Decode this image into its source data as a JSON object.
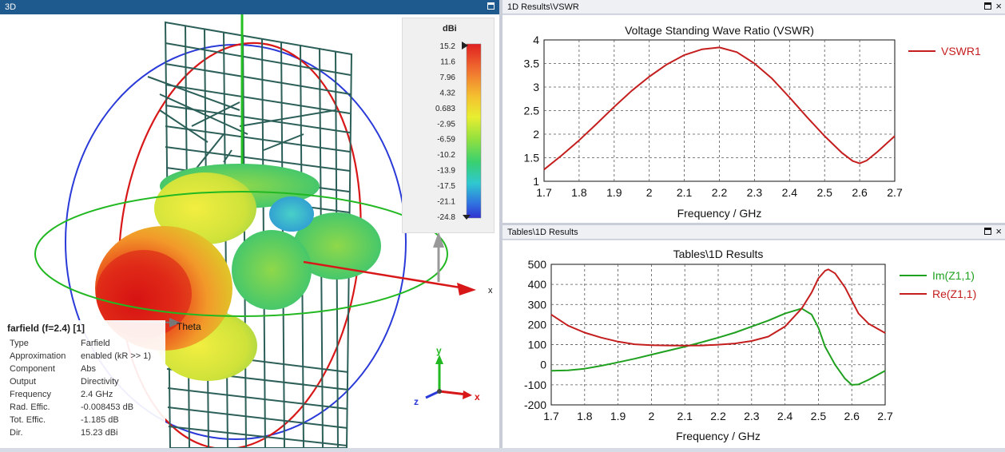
{
  "panels": {
    "left_title": "3D",
    "vswr_title": "1D Results\\VSWR",
    "tables_title": "Tables\\1D Results"
  },
  "colorbar": {
    "unit": "dBi",
    "ticks": [
      "15.2",
      "11.6",
      "7.96",
      "4.32",
      "0.683",
      "-2.95",
      "-6.59",
      "-10.2",
      "-13.9",
      "-17.5",
      "-21.1",
      "-24.8"
    ]
  },
  "axes3d": {
    "x": "x",
    "y": "y",
    "z": "z",
    "theta": "Theta",
    "x_small": "x"
  },
  "farfield": {
    "title": "farfield (f=2.4) [1]",
    "rows": [
      {
        "k": "Type",
        "v": "Farfield"
      },
      {
        "k": "Approximation",
        "v": "enabled (kR >> 1)"
      },
      {
        "k": "Component",
        "v": "Abs"
      },
      {
        "k": "Output",
        "v": "Directivity"
      },
      {
        "k": "Frequency",
        "v": "2.4 GHz"
      },
      {
        "k": "Rad. Effic.",
        "v": "-0.008453 dB"
      },
      {
        "k": "Tot. Effic.",
        "v": "-1.185 dB"
      },
      {
        "k": "Dir.",
        "v": "15.23 dBi"
      }
    ]
  },
  "chart_data": [
    {
      "type": "line",
      "title": "Voltage Standing Wave Ratio (VSWR)",
      "xlabel": "Frequency / GHz",
      "ylabel": "",
      "xlim": [
        1.7,
        2.7
      ],
      "ylim": [
        1,
        4
      ],
      "xticks": [
        "1.7",
        "1.8",
        "1.9",
        "2",
        "2.1",
        "2.2",
        "2.3",
        "2.4",
        "2.5",
        "2.6",
        "2.7"
      ],
      "yticks": [
        "1",
        "1.5",
        "2",
        "2.5",
        "3",
        "3.5",
        "4"
      ],
      "grid": true,
      "legend": "right",
      "series": [
        {
          "name": "VSWR1",
          "color": "#c41e1e",
          "x": [
            1.7,
            1.75,
            1.8,
            1.85,
            1.9,
            1.95,
            2.0,
            2.05,
            2.1,
            2.15,
            2.2,
            2.25,
            2.3,
            2.35,
            2.4,
            2.45,
            2.5,
            2.55,
            2.58,
            2.6,
            2.62,
            2.65,
            2.7
          ],
          "y": [
            1.25,
            1.55,
            1.87,
            2.22,
            2.58,
            2.92,
            3.22,
            3.48,
            3.68,
            3.8,
            3.84,
            3.74,
            3.5,
            3.18,
            2.78,
            2.36,
            1.96,
            1.6,
            1.43,
            1.38,
            1.44,
            1.62,
            1.96
          ]
        }
      ]
    },
    {
      "type": "line",
      "title": "Tables\\1D Results",
      "xlabel": "Frequency / GHz",
      "ylabel": "",
      "xlim": [
        1.7,
        2.7
      ],
      "ylim": [
        -200,
        500
      ],
      "xticks": [
        "1.7",
        "1.8",
        "1.9",
        "2",
        "2.1",
        "2.2",
        "2.3",
        "2.4",
        "2.5",
        "2.6",
        "2.7"
      ],
      "yticks": [
        "-200",
        "-100",
        "0",
        "100",
        "200",
        "300",
        "400",
        "500"
      ],
      "grid": true,
      "legend": "right",
      "series": [
        {
          "name": "Im(Z1,1)",
          "color": "#1fa01f",
          "x": [
            1.7,
            1.75,
            1.8,
            1.85,
            1.9,
            1.95,
            2.0,
            2.05,
            2.1,
            2.15,
            2.2,
            2.25,
            2.3,
            2.35,
            2.4,
            2.45,
            2.48,
            2.5,
            2.52,
            2.55,
            2.58,
            2.6,
            2.62,
            2.65,
            2.7
          ],
          "y": [
            -30,
            -28,
            -20,
            -5,
            12,
            30,
            50,
            70,
            90,
            112,
            135,
            160,
            190,
            220,
            255,
            280,
            250,
            185,
            90,
            0,
            -70,
            -100,
            -98,
            -75,
            -30
          ]
        },
        {
          "name": "Re(Z1,1)",
          "color": "#c41e1e",
          "x": [
            1.7,
            1.75,
            1.8,
            1.85,
            1.9,
            1.95,
            2.0,
            2.05,
            2.1,
            2.15,
            2.2,
            2.25,
            2.3,
            2.35,
            2.4,
            2.45,
            2.48,
            2.5,
            2.52,
            2.53,
            2.55,
            2.58,
            2.6,
            2.62,
            2.65,
            2.7
          ],
          "y": [
            250,
            195,
            160,
            135,
            115,
            102,
            97,
            96,
            95,
            96,
            100,
            106,
            118,
            140,
            190,
            280,
            360,
            430,
            468,
            475,
            455,
            385,
            320,
            255,
            205,
            158
          ]
        }
      ]
    }
  ]
}
